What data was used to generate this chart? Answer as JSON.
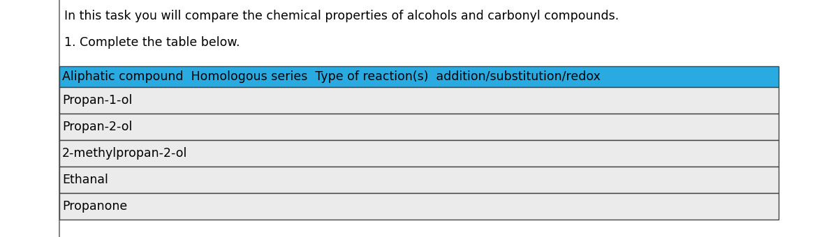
{
  "title_text": "In this task you will compare the chemical properties of alcohols and carbonyl compounds.",
  "subtitle_text": "1. Complete the table below.",
  "header_text": "Aliphatic compound  Homologous series  Type of reaction(s)  addition/substitution/redox",
  "header_bg": "#29ABE2",
  "header_text_color": "#000000",
  "table_bg": "#EBEBEB",
  "rows": [
    "Propan-1-ol",
    "Propan-2-ol",
    "2-methylpropan-2-ol",
    "Ethanal",
    "Propanone"
  ],
  "row_text_color": "#000000",
  "border_color": "#444444",
  "bg_color": "#FFFFFF",
  "title_fontsize": 12.5,
  "subtitle_fontsize": 12.5,
  "header_fontsize": 12.5,
  "row_fontsize": 12.5
}
